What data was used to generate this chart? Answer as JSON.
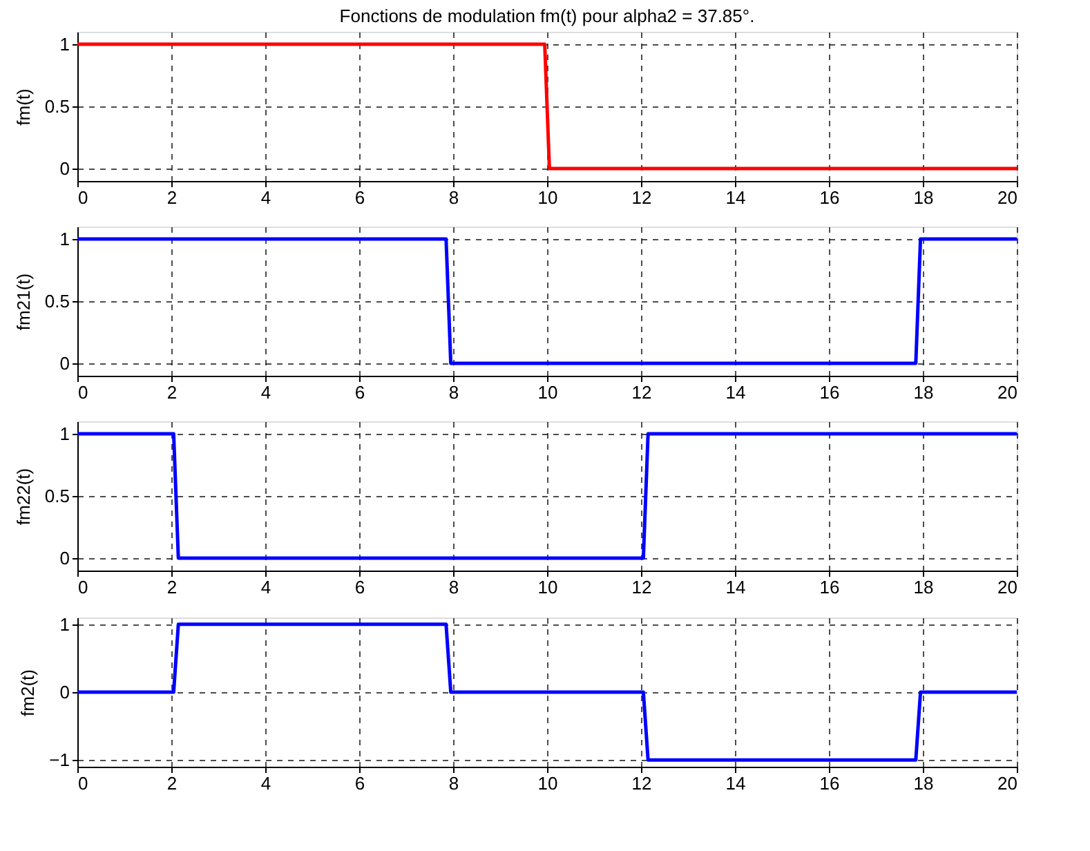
{
  "chart_data": [
    {
      "type": "line",
      "title": "Fonctions de modulation fm(t) pour alpha2 = 37.85°.",
      "ylabel": "fm(t)",
      "xlim": [
        0,
        20
      ],
      "xticks": [
        0,
        2,
        4,
        6,
        8,
        10,
        12,
        14,
        16,
        18,
        20
      ],
      "ylim": [
        -0.1,
        1.1
      ],
      "yticks": [
        0,
        0.5,
        1
      ],
      "grid": true,
      "line_style": "solid",
      "series": [
        {
          "color": "#ff0000",
          "x": [
            0,
            9.95,
            10.05,
            20
          ],
          "values": [
            1,
            1,
            0,
            0
          ]
        }
      ]
    },
    {
      "type": "line",
      "ylabel": "fm21(t)",
      "xlim": [
        0,
        20
      ],
      "xticks": [
        0,
        2,
        4,
        6,
        8,
        10,
        12,
        14,
        16,
        18,
        20
      ],
      "ylim": [
        -0.1,
        1.1
      ],
      "yticks": [
        0,
        0.5,
        1
      ],
      "grid": true,
      "line_style": "solid",
      "series": [
        {
          "color": "#0000ff",
          "x": [
            0,
            7.85,
            7.95,
            17.85,
            17.95,
            20
          ],
          "values": [
            1,
            1,
            0,
            0,
            1,
            1
          ]
        }
      ]
    },
    {
      "type": "line",
      "ylabel": "fm22(t)",
      "xlim": [
        0,
        20
      ],
      "xticks": [
        0,
        2,
        4,
        6,
        8,
        10,
        12,
        14,
        16,
        18,
        20
      ],
      "ylim": [
        -0.1,
        1.1
      ],
      "yticks": [
        0,
        0.5,
        1
      ],
      "grid": true,
      "line_style": "solid",
      "series": [
        {
          "color": "#0000ff",
          "x": [
            0,
            2.05,
            2.15,
            12.05,
            12.15,
            20
          ],
          "values": [
            1,
            1,
            0,
            0,
            1,
            1
          ]
        }
      ]
    },
    {
      "type": "line",
      "ylabel": "fm2(t)",
      "xlim": [
        0,
        20
      ],
      "xticks": [
        0,
        2,
        4,
        6,
        8,
        10,
        12,
        14,
        16,
        18,
        20
      ],
      "ylim": [
        -1.1,
        1.1
      ],
      "yticks": [
        -1,
        0,
        1
      ],
      "grid": true,
      "line_style": "solid",
      "series": [
        {
          "color": "#0000ff",
          "x": [
            0,
            2.05,
            2.15,
            7.85,
            7.95,
            12.05,
            12.15,
            17.85,
            17.95,
            20
          ],
          "values": [
            0,
            0,
            1,
            1,
            0,
            0,
            -1,
            -1,
            0,
            0
          ]
        }
      ]
    }
  ]
}
